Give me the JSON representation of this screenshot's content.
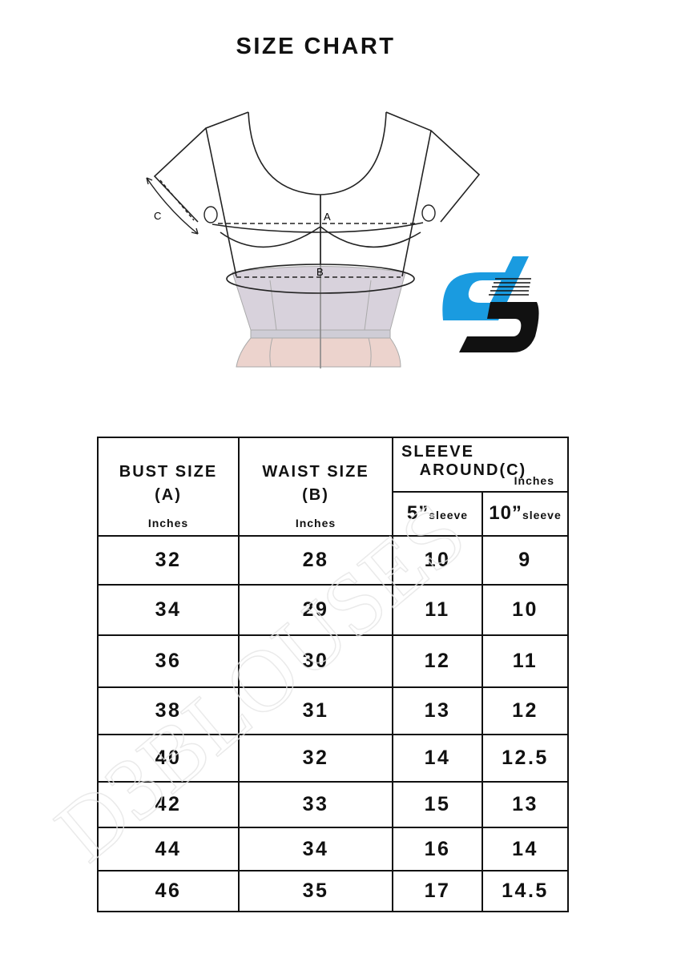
{
  "title": "SIZE CHART",
  "diagram": {
    "labels": {
      "a": "A",
      "b": "B",
      "c": "C"
    }
  },
  "logo": {
    "colors": {
      "blue": "#1a9be0",
      "black": "#111111"
    }
  },
  "watermark": "D3BLOUSES",
  "table": {
    "headers": {
      "bust": {
        "label": "BUST SIZE",
        "code": "(A)",
        "unit": "Inches"
      },
      "waist": {
        "label": "WAIST SIZE",
        "code": "(B)",
        "unit": "Inches"
      },
      "sleeve": {
        "line1": "SLEEVE",
        "line2": "AROUND",
        "code": "(C)",
        "unit": "Inches"
      },
      "sleeve5": {
        "value": "5”",
        "suffix": "sleeve"
      },
      "sleeve10": {
        "value": "10”",
        "suffix": "sleeve"
      }
    },
    "rows": [
      [
        "32",
        "28",
        "10",
        "9"
      ],
      [
        "34",
        "29",
        "11",
        "10"
      ],
      [
        "36",
        "30",
        "12",
        "11"
      ],
      [
        "38",
        "31",
        "13",
        "12"
      ],
      [
        "40",
        "32",
        "14",
        "12.5"
      ],
      [
        "42",
        "33",
        "15",
        "13"
      ],
      [
        "44",
        "34",
        "16",
        "14"
      ],
      [
        "46",
        "35",
        "17",
        "14.5"
      ]
    ]
  }
}
